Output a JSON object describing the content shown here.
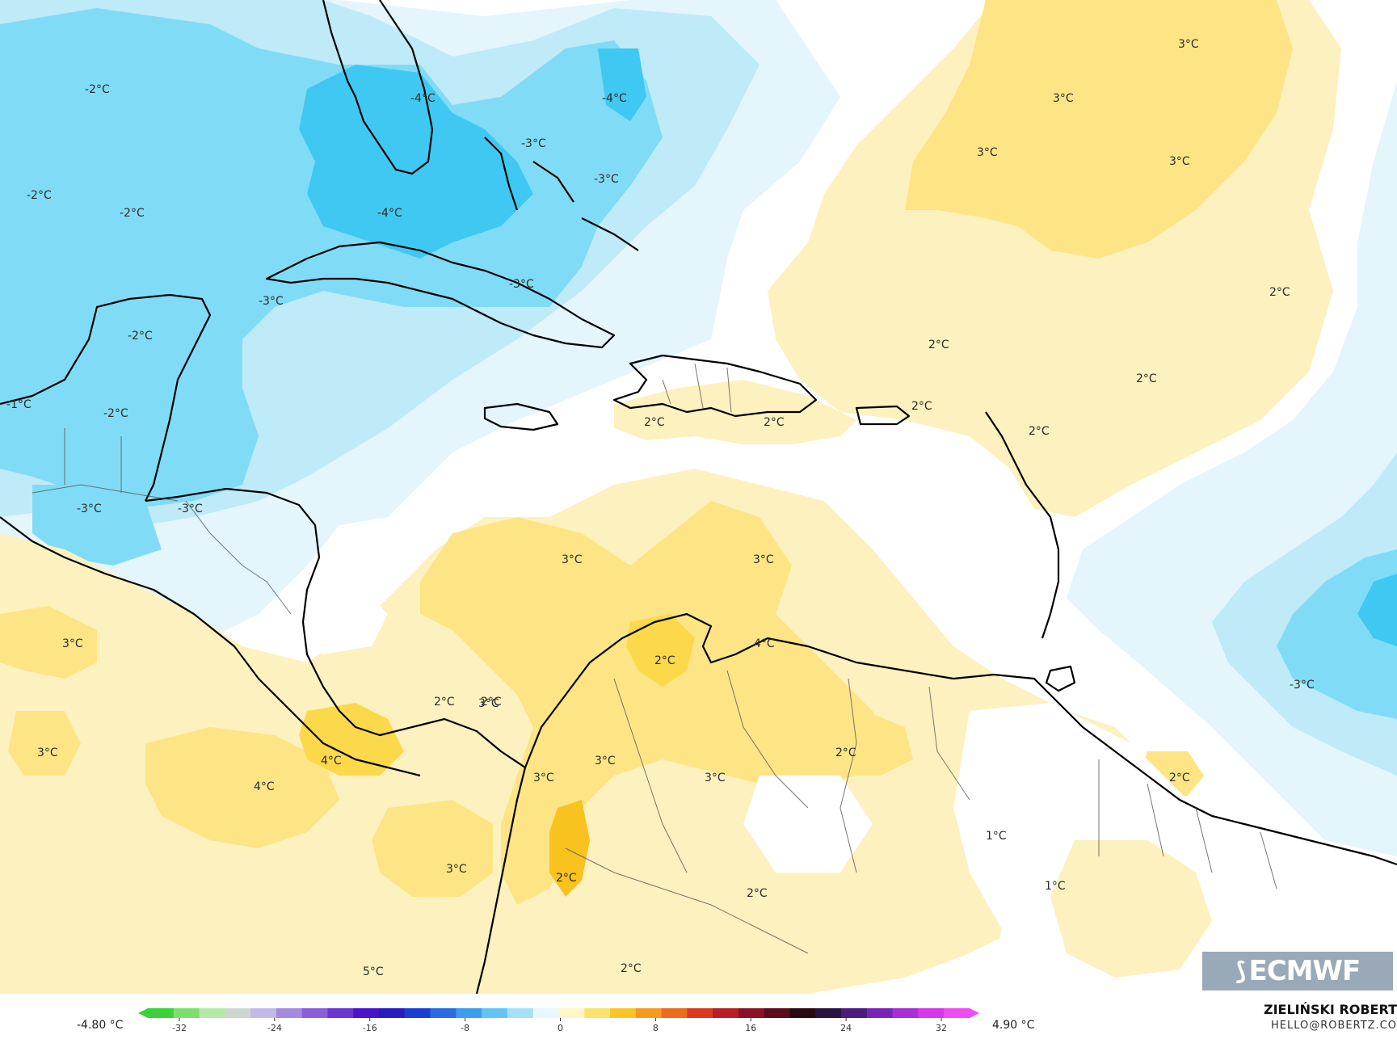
{
  "map": {
    "region": "Caribbean Sea and Gulf of Mexico",
    "palette": {
      "cold_3": "#3fc9f2",
      "cold_2": "#80dcf6",
      "cold_1": "#bfeaf8",
      "cold_0": "#e4f5fc",
      "neutral": "#ffffff",
      "warm_1": "#fdf1bf",
      "warm_2": "#fde585",
      "warm_3": "#fcd94a",
      "warm_4": "#f8c21f",
      "coast": "#000000",
      "border": "#555555"
    },
    "labels": [
      {
        "id": "l1",
        "text": "-2°C"
      },
      {
        "id": "l2",
        "text": "-4°C"
      },
      {
        "id": "l3",
        "text": "-4°C"
      },
      {
        "id": "l4",
        "text": "-3°C"
      },
      {
        "id": "l5",
        "text": "-3°C"
      },
      {
        "id": "l6",
        "text": "-2°C"
      },
      {
        "id": "l7",
        "text": "-2°C"
      },
      {
        "id": "l8",
        "text": "-4°C"
      },
      {
        "id": "l9",
        "text": "-3°C"
      },
      {
        "id": "l10",
        "text": "-3°C"
      },
      {
        "id": "l11",
        "text": "-2°C"
      },
      {
        "id": "l12",
        "text": "-1°C"
      },
      {
        "id": "l13",
        "text": "-2°C"
      },
      {
        "id": "l14",
        "text": "-3°C"
      },
      {
        "id": "l15",
        "text": "-3°C"
      },
      {
        "id": "l16",
        "text": "3°C"
      },
      {
        "id": "l17",
        "text": "3°C"
      },
      {
        "id": "l18",
        "text": "3°C"
      },
      {
        "id": "l19",
        "text": "3°C"
      },
      {
        "id": "l20",
        "text": "2°C"
      },
      {
        "id": "l21",
        "text": "2°C"
      },
      {
        "id": "l22",
        "text": "2°C"
      },
      {
        "id": "l23",
        "text": "2°C"
      },
      {
        "id": "l24",
        "text": "2°C"
      },
      {
        "id": "l25",
        "text": "2°C"
      },
      {
        "id": "l26",
        "text": "2°C"
      },
      {
        "id": "l27",
        "text": "3°C"
      },
      {
        "id": "l28",
        "text": "3°C"
      },
      {
        "id": "l29",
        "text": "3°C"
      },
      {
        "id": "l30",
        "text": "4°C"
      },
      {
        "id": "l31",
        "text": "2°C"
      },
      {
        "id": "l32",
        "text": "3°C"
      },
      {
        "id": "l33",
        "text": "4°C"
      },
      {
        "id": "l34",
        "text": "4°C"
      },
      {
        "id": "l35",
        "text": "3°C"
      },
      {
        "id": "l36",
        "text": "3°C"
      },
      {
        "id": "l37",
        "text": "2°C"
      },
      {
        "id": "l38",
        "text": "3°C"
      },
      {
        "id": "l39",
        "text": "3°C"
      },
      {
        "id": "l40",
        "text": "3°C"
      },
      {
        "id": "l41",
        "text": "2°C"
      },
      {
        "id": "l42",
        "text": "2°C"
      },
      {
        "id": "l43",
        "text": "1°C"
      },
      {
        "id": "l44",
        "text": "1°C"
      },
      {
        "id": "l45",
        "text": "2°C"
      },
      {
        "id": "l46",
        "text": "5°C"
      },
      {
        "id": "l47",
        "text": "2°C"
      },
      {
        "id": "l48",
        "text": "2°C"
      },
      {
        "id": "l49",
        "text": "2°C"
      },
      {
        "id": "l50",
        "text": "-3°C"
      }
    ]
  },
  "legend": {
    "min_label": "-4.80 °C",
    "max_label": "4.90 °C",
    "ticks": [
      "-32",
      "-24",
      "-16",
      "-8",
      "0",
      "8",
      "16",
      "24",
      "32"
    ],
    "colors": [
      "#3ad13a",
      "#7fdf6c",
      "#b5e9a8",
      "#cfd6cf",
      "#c3b9e6",
      "#a58be0",
      "#8a5fd9",
      "#6a35d2",
      "#4a14c8",
      "#2a1bbd",
      "#1a3fd0",
      "#2b6de0",
      "#3e9cee",
      "#66c4f5",
      "#a5e0f8",
      "#e8f7fc",
      "#fff6c6",
      "#fde36b",
      "#fbc52a",
      "#f69a1f",
      "#ee6a1c",
      "#dc3a1e",
      "#b81e26",
      "#8b1224",
      "#5e0b1e",
      "#2a0a12",
      "#2a1340",
      "#4d1b7d",
      "#7a24b5",
      "#a82fd8",
      "#d637ec",
      "#f04cf6"
    ]
  },
  "branding": {
    "logo_text": "ECMWF",
    "author": "ZIELIŃSKI ROBERT",
    "email": "HELLO@ROBERTZ.CO"
  }
}
